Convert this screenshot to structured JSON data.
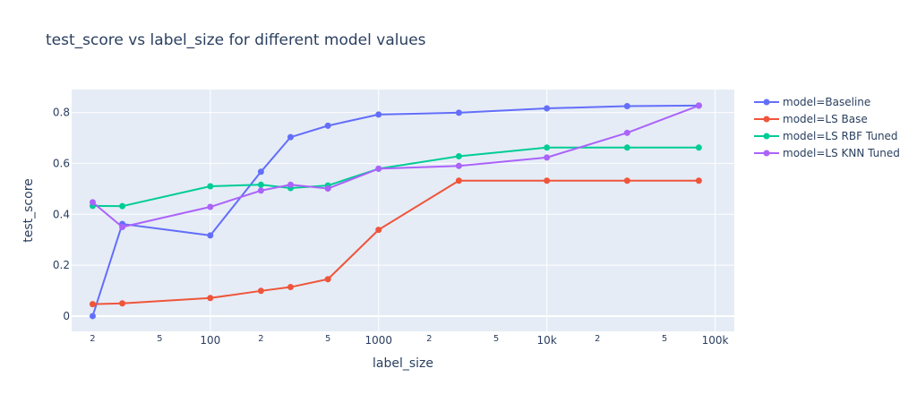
{
  "chart_data": {
    "type": "line",
    "title": "test_score vs label_size for different model values",
    "xlabel": "label_size",
    "ylabel": "test_score",
    "x_scale": "log",
    "xlim": [
      15,
      130000
    ],
    "ylim": [
      -0.06,
      0.89
    ],
    "grid": true,
    "legend_position": "right",
    "x_ticks": [
      {
        "value": 20,
        "label": "2",
        "minor": true
      },
      {
        "value": 50,
        "label": "5",
        "minor": true
      },
      {
        "value": 100,
        "label": "100",
        "minor": false
      },
      {
        "value": 200,
        "label": "2",
        "minor": true
      },
      {
        "value": 500,
        "label": "5",
        "minor": true
      },
      {
        "value": 1000,
        "label": "1000",
        "minor": false
      },
      {
        "value": 2000,
        "label": "2",
        "minor": true
      },
      {
        "value": 5000,
        "label": "5",
        "minor": true
      },
      {
        "value": 10000,
        "label": "10k",
        "minor": false
      },
      {
        "value": 20000,
        "label": "2",
        "minor": true
      },
      {
        "value": 50000,
        "label": "5",
        "minor": true
      },
      {
        "value": 100000,
        "label": "100k",
        "minor": false
      }
    ],
    "y_ticks": [
      {
        "value": 0,
        "label": "0"
      },
      {
        "value": 0.2,
        "label": "0.2"
      },
      {
        "value": 0.4,
        "label": "0.4"
      },
      {
        "value": 0.6,
        "label": "0.6"
      },
      {
        "value": 0.8,
        "label": "0.8"
      }
    ],
    "x": [
      20,
      30,
      100,
      200,
      300,
      500,
      1000,
      3000,
      10000,
      30000,
      80000
    ],
    "series": [
      {
        "name": "model=Baseline",
        "color": "#636efa",
        "values": [
          0.0,
          0.362,
          0.317,
          0.567,
          0.703,
          0.748,
          0.792,
          0.799,
          0.816,
          0.825,
          0.827
        ]
      },
      {
        "name": "model=LS Base",
        "color": "#ef553b",
        "values": [
          0.047,
          0.05,
          0.071,
          0.099,
          0.114,
          0.145,
          0.339,
          0.532,
          0.532,
          0.532,
          0.532
        ]
      },
      {
        "name": "model=LS RBF Tuned",
        "color": "#00cc96",
        "values": [
          0.433,
          0.432,
          0.51,
          0.516,
          0.503,
          0.513,
          0.579,
          0.628,
          0.662,
          0.662,
          0.662
        ]
      },
      {
        "name": "model=LS KNN Tuned",
        "color": "#ab63fa",
        "values": [
          0.447,
          0.35,
          0.429,
          0.493,
          0.516,
          0.501,
          0.579,
          0.59,
          0.623,
          0.72,
          0.827
        ]
      }
    ]
  }
}
